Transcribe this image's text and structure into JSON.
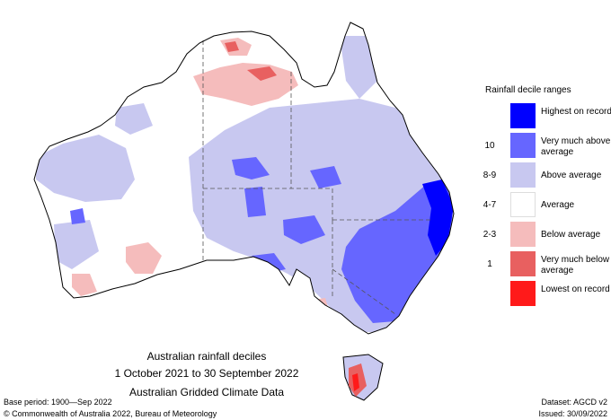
{
  "map": {
    "region": "Australia",
    "colors": {
      "outline": "#000000",
      "boundary": "#555555",
      "highest_on_record": "#0000ff",
      "very_much_above_average": "#6666ff",
      "above_average": "#c8c8f0",
      "average": "#ffffff",
      "below_average": "#f5bcbc",
      "very_much_below_average": "#e86060",
      "lowest_on_record": "#ff1a1a"
    }
  },
  "legend": {
    "title": "Rainfall decile ranges",
    "items": [
      {
        "decile": "",
        "label": "Highest on record",
        "color": "#0000ff"
      },
      {
        "decile": "10",
        "label": "Very much above average",
        "color": "#6666ff"
      },
      {
        "decile": "8-9",
        "label": "Above average",
        "color": "#c8c8f0"
      },
      {
        "decile": "4-7",
        "label": "Average",
        "color": "#ffffff"
      },
      {
        "decile": "2-3",
        "label": "Below average",
        "color": "#f5bcbc"
      },
      {
        "decile": "1",
        "label": "Very much below average",
        "color": "#e86060"
      },
      {
        "decile": "",
        "label": "Lowest on record",
        "color": "#ff1a1a"
      }
    ]
  },
  "caption": {
    "line1": "Australian rainfall deciles",
    "line2": "1 October 2021 to 30 September 2022",
    "line3": "Australian Gridded Climate Data"
  },
  "footer": {
    "base_period": "Base period: 1900—Sep 2022",
    "copyright": "© Commonwealth of Australia 2022, Bureau of Meteorology",
    "dataset": "Dataset: AGCD v2",
    "issued": "Issued: 30/09/2022"
  }
}
